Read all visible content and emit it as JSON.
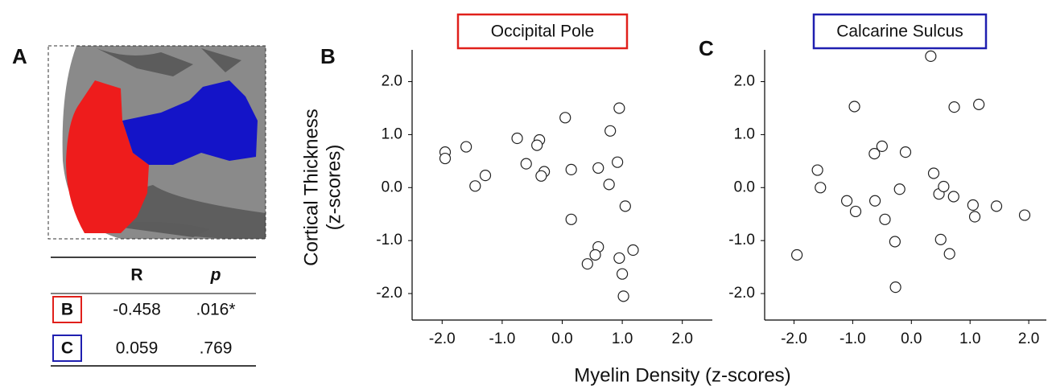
{
  "panel_labels": [
    "A",
    "B",
    "C"
  ],
  "xlabel": "Myelin Density (z-scores)",
  "table": {
    "header": [
      "R",
      "p"
    ],
    "rows": [
      [
        "B",
        "-0.458",
        ".016*"
      ],
      [
        "C",
        "0.059",
        ".769"
      ]
    ],
    "row_colors": [
      "#e0201b",
      "#1f1fb0"
    ]
  },
  "chart_data": [
    {
      "type": "scatter",
      "title": "Occipital Pole",
      "title_box_color": "#e0201b",
      "ylabel": [
        "Cortical Thickness",
        "(z-scores)"
      ],
      "x": [
        -1.95,
        -1.95,
        -1.6,
        -1.45,
        -1.28,
        -0.75,
        -0.6,
        -0.38,
        -0.42,
        -0.3,
        -0.35,
        0.05,
        0.15,
        0.15,
        0.6,
        0.8,
        0.95,
        0.92,
        0.78,
        1.05,
        0.6,
        0.55,
        0.42,
        0.95,
        1.18,
        1.0,
        1.02
      ],
      "y": [
        0.67,
        0.55,
        0.77,
        0.03,
        0.23,
        0.93,
        0.45,
        0.9,
        0.8,
        0.3,
        0.22,
        1.32,
        0.34,
        -0.6,
        0.37,
        1.07,
        1.5,
        0.48,
        0.06,
        -0.35,
        -1.12,
        -1.27,
        -1.44,
        -1.33,
        -1.18,
        -1.63,
        -2.05
      ],
      "xlim": [
        -2.5,
        2.5
      ],
      "ylim": [
        -2.5,
        2.6
      ],
      "xticks": [
        {
          "value": -2,
          "label": "-2.0"
        },
        {
          "value": -1,
          "label": "-1.0"
        },
        {
          "value": 0,
          "label": "0.0"
        },
        {
          "value": 1,
          "label": "1.0"
        },
        {
          "value": 2,
          "label": "2.0"
        }
      ],
      "yticks": [
        {
          "value": -2,
          "label": "-2.0"
        },
        {
          "value": -1,
          "label": "-1.0"
        },
        {
          "value": 0,
          "label": "0.0"
        },
        {
          "value": 1,
          "label": "1.0"
        },
        {
          "value": 2,
          "label": "2.0"
        }
      ]
    },
    {
      "type": "scatter",
      "title": "Calcarine Sulcus",
      "title_box_color": "#1f1fb0",
      "x": [
        -1.95,
        -1.6,
        -1.55,
        -1.1,
        -0.97,
        -0.95,
        -0.63,
        -0.62,
        -0.5,
        -0.45,
        -0.28,
        -0.27,
        -0.2,
        -0.1,
        0.33,
        0.38,
        0.47,
        0.55,
        0.5,
        0.65,
        0.72,
        0.73,
        1.05,
        1.08,
        1.15,
        1.45,
        1.93
      ],
      "y": [
        -1.27,
        0.33,
        0.0,
        -0.25,
        1.53,
        -0.45,
        0.64,
        -0.25,
        0.78,
        -0.6,
        -1.02,
        -1.88,
        -0.03,
        0.67,
        2.48,
        0.27,
        -0.12,
        0.02,
        -0.98,
        -1.25,
        -0.17,
        1.52,
        -0.33,
        -0.55,
        1.57,
        -0.35,
        -0.52
      ],
      "xlim": [
        -2.5,
        2.3
      ],
      "ylim": [
        -2.5,
        2.6
      ],
      "xticks": [
        {
          "value": -2,
          "label": "-2.0"
        },
        {
          "value": -1,
          "label": "-1.0"
        },
        {
          "value": 0,
          "label": "0.0"
        },
        {
          "value": 1,
          "label": "1.0"
        },
        {
          "value": 2,
          "label": "2.0"
        }
      ],
      "yticks": [
        {
          "value": -2,
          "label": "-2.0"
        },
        {
          "value": -1,
          "label": "-1.0"
        },
        {
          "value": 0,
          "label": "0.0"
        },
        {
          "value": 1,
          "label": "1.0"
        },
        {
          "value": 2,
          "label": "2.0"
        }
      ]
    }
  ]
}
